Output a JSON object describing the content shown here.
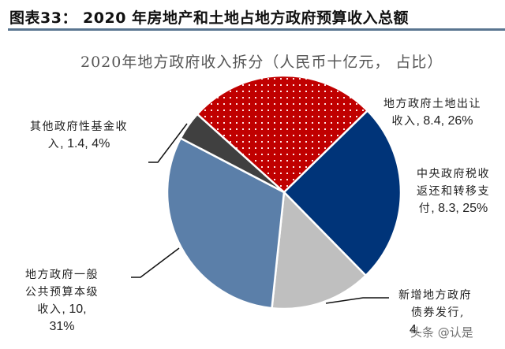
{
  "figure": {
    "title": "图表33：  2020 年房地产和土地占地方政府预算收入总额"
  },
  "chart_data": {
    "type": "pie",
    "title": "2020年地方政府收入拆分（人民币十亿元， 占比）",
    "unit": "人民币十亿元",
    "start_angle_deg": -48,
    "direction": "clockwise",
    "slices": [
      {
        "label": "地方政府土地出让收入",
        "value": 8.4,
        "percent": 26,
        "color": "#c00000",
        "pattern": "dots"
      },
      {
        "label": "中央政府税收返还和转移支付",
        "value": 8.3,
        "percent": 25,
        "color": "#003479",
        "pattern": "solid"
      },
      {
        "label": "新增地方政府债券发行",
        "value": 4.6,
        "percent": 14,
        "color": "#bfbfbf",
        "pattern": "solid",
        "note": "value partially obscured by watermark; percent inferred"
      },
      {
        "label": "地方政府一般公共预算本级收入",
        "value": 10,
        "percent": 31,
        "color": "#5b7fa9",
        "pattern": "solid"
      },
      {
        "label": "其他政府性基金收入",
        "value": 1.4,
        "percent": 4,
        "color": "#404040",
        "pattern": "solid"
      }
    ]
  },
  "labels": {
    "land": {
      "line1": "地方政府土地出让",
      "line2_text": "收入",
      "line2_num": ", 8.4, 26%"
    },
    "central": {
      "line1": "中央政府税收",
      "line2": "返还和转移支",
      "line3_text": "付",
      "line3_num": ", 8.3, 25%"
    },
    "bonds": {
      "line1": "新增地方政府",
      "line2": "债券发行,",
      "line3_num": "4."
    },
    "general": {
      "line1": "地方政府一般",
      "line2": "公共预算本级",
      "line3_text": "收入",
      "line3_num": ", 10,",
      "line4": "31%"
    },
    "other": {
      "line1": "其他政府性基金收",
      "line2_text": "入",
      "line2_num": ", 1.4, 4%"
    }
  },
  "watermark": "头条 @认是"
}
